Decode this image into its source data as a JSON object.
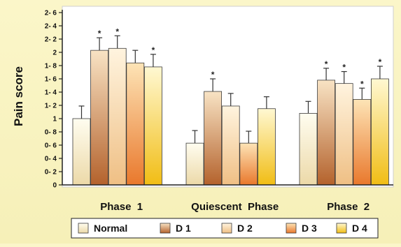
{
  "chart_data": {
    "type": "bar",
    "ylabel": "Pain score",
    "ylim": [
      0,
      2.6
    ],
    "yticks": [
      0,
      0.2,
      0.4,
      0.6,
      0.8,
      1,
      1.2,
      1.4,
      1.6,
      1.8,
      2,
      2.2,
      2.4,
      2.6
    ],
    "ytick_labels": [
      "0",
      "0- 2",
      "0- 4",
      "0- 6",
      "0- 8",
      "1",
      "1- 2",
      "1- 4",
      "1- 6",
      "1- 8",
      "2",
      "2- 2",
      "2- 4",
      "2- 6"
    ],
    "categories": [
      "Phase  1",
      "Quiescent  Phase",
      "Phase  2"
    ],
    "series": [
      {
        "name": "Normal",
        "color_top": "#fffdf0",
        "color_bottom": "#ecd9a8",
        "values": [
          1.0,
          0.63,
          1.08
        ],
        "errors": [
          0.19,
          0.19,
          0.18
        ],
        "stars": [
          false,
          false,
          false
        ]
      },
      {
        "name": "D 1",
        "color_top": "#f8e3c4",
        "color_bottom": "#b4622c",
        "values": [
          2.03,
          1.41,
          1.58
        ],
        "errors": [
          0.19,
          0.19,
          0.18
        ],
        "stars": [
          true,
          true,
          true
        ]
      },
      {
        "name": "D 2",
        "color_top": "#fff4df",
        "color_bottom": "#efbf84",
        "values": [
          2.06,
          1.19,
          1.53
        ],
        "errors": [
          0.19,
          0.19,
          0.18
        ],
        "stars": [
          true,
          false,
          true
        ]
      },
      {
        "name": "D 3",
        "color_top": "#fde4b6",
        "color_bottom": "#e9782c",
        "values": [
          1.84,
          0.63,
          1.29
        ],
        "errors": [
          0.19,
          0.18,
          0.17
        ],
        "stars": [
          false,
          false,
          true
        ]
      },
      {
        "name": "D 4",
        "color_top": "#fff8d2",
        "color_bottom": "#f1bd14",
        "values": [
          1.78,
          1.15,
          1.6
        ],
        "errors": [
          0.19,
          0.18,
          0.19
        ],
        "stars": [
          true,
          false,
          true
        ]
      }
    ],
    "significance_marker": "*",
    "legend": {
      "position": "bottom"
    },
    "grid": false
  },
  "colors": {
    "background": "#f8f2bd",
    "plot_background": "#ffffff",
    "axis": "#222222",
    "bar_border": "#3a3a3a"
  }
}
